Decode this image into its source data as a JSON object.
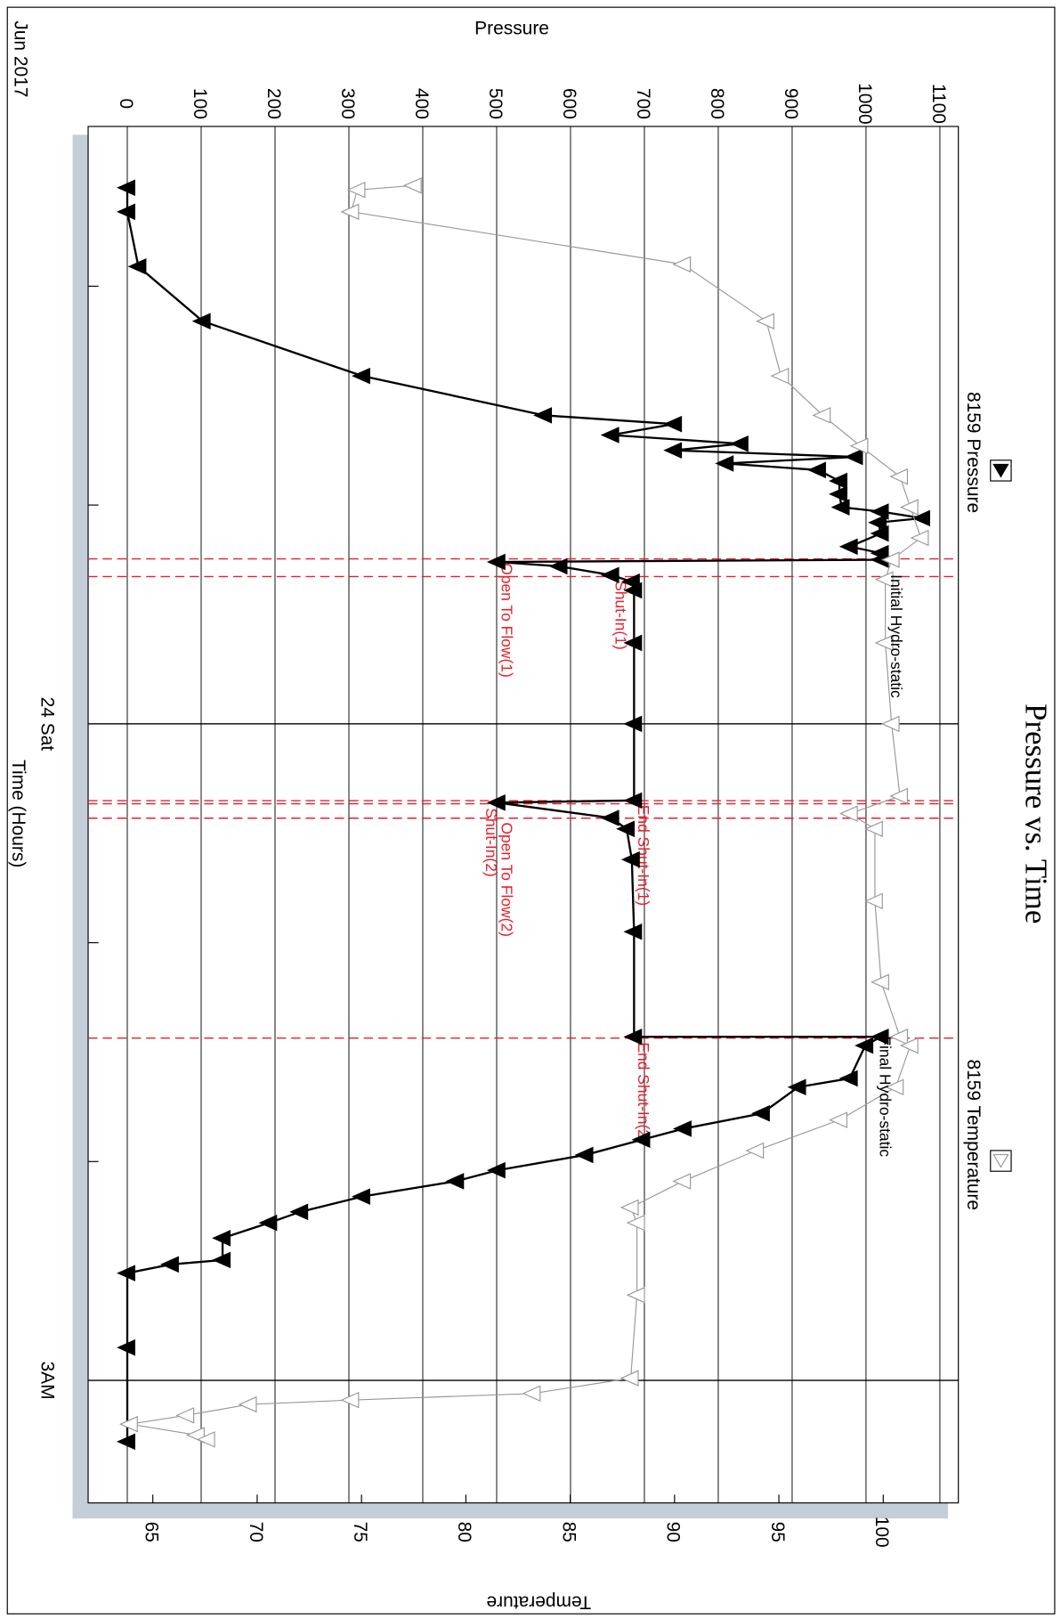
{
  "chart_data": {
    "type": "line",
    "title": "Pressure vs. Time",
    "x_label": "Time (Hours)",
    "x_date_label": "Jun 2017",
    "y_label": "Pressure",
    "y2_label": "Temperature",
    "xlim": [
      -2.73,
      3.56
    ],
    "xticks": [
      {
        "value": 0,
        "label": "24 Sat"
      },
      {
        "value": 3,
        "label": "3AM"
      }
    ],
    "xminor_ticks": [
      -2,
      -1,
      1,
      2
    ],
    "ylim": [
      -53,
      1125
    ],
    "yticks": [
      0,
      100,
      200,
      300,
      400,
      500,
      600,
      700,
      800,
      900,
      1000,
      1100
    ],
    "y2lim": [
      61.9,
      103.6
    ],
    "y2ticks": [
      65,
      70,
      75,
      80,
      85,
      90,
      95,
      100
    ],
    "grid": true,
    "series": [
      {
        "name": "8159 Pressure",
        "color": "#000000",
        "marker": "filled-triangle",
        "x": [
          -2.45,
          -2.34,
          -2.09,
          -1.84,
          -1.59,
          -1.41,
          -1.37,
          -1.32,
          -1.28,
          -1.25,
          -1.22,
          -1.19,
          -1.16,
          -1.11,
          -1.05,
          -0.99,
          -0.97,
          -0.94,
          -0.92,
          -0.87,
          -0.81,
          -0.78,
          -0.75,
          -0.74,
          -0.72,
          -0.68,
          -0.65,
          -0.61,
          -0.37,
          0.0,
          0.35,
          0.36,
          0.43,
          0.48,
          0.62,
          0.95,
          1.43,
          1.43,
          1.47,
          1.62,
          1.66,
          1.78,
          1.85,
          1.9,
          1.97,
          2.04,
          2.09,
          2.16,
          2.23,
          2.28,
          2.35,
          2.45,
          2.47,
          2.51,
          2.85,
          3.28
        ],
        "values": [
          0,
          0,
          15,
          102,
          318,
          564,
          740,
          655,
          830,
          740,
          985,
          810,
          935,
          964,
          964,
          967,
          1020,
          1076,
          1017,
          1020,
          978,
          1020,
          1020,
          501,
          585,
          655,
          683,
          686,
          686,
          686,
          686,
          501,
          655,
          676,
          683,
          686,
          686,
          1020,
          999,
          978,
          908,
          859,
          753,
          697,
          620,
          501,
          445,
          318,
          234,
          192,
          129,
          129,
          59,
          0,
          0,
          0
        ]
      },
      {
        "name": "8159 Temperature",
        "color": "#999999",
        "marker": "hollow-triangle",
        "axis": "y2",
        "x": [
          -2.46,
          -2.44,
          -2.34,
          -2.1,
          -1.84,
          -1.59,
          -1.41,
          -1.27,
          -1.13,
          -0.99,
          -0.85,
          -0.75,
          -0.66,
          -0.37,
          0.0,
          0.33,
          0.41,
          0.48,
          0.81,
          1.18,
          1.43,
          1.47,
          1.66,
          1.81,
          1.95,
          2.09,
          2.21,
          2.28,
          2.61,
          2.99,
          3.06,
          3.09,
          3.11,
          3.16,
          3.2,
          3.25,
          3.27
        ],
        "values": [
          77.5,
          74.8,
          74.5,
          90.4,
          94.4,
          95.1,
          97.1,
          98.9,
          100.8,
          101.3,
          101.8,
          100.4,
          100.1,
          100.1,
          100.4,
          100.8,
          98.4,
          99.6,
          99.6,
          99.9,
          100.8,
          101.3,
          100.6,
          97.9,
          93.9,
          90.4,
          87.9,
          88.2,
          88.2,
          87.9,
          83.2,
          74.5,
          69.6,
          66.6,
          63.9,
          67.1,
          67.6
        ]
      }
    ],
    "events": [
      {
        "x": -0.754,
        "text": "Open To Flow(1)",
        "y": 501
      },
      {
        "x": -0.673,
        "text": "Shut-In(1)",
        "y": 655
      },
      {
        "x": 0.351,
        "text": "End Shut-In(1)",
        "y": 686
      },
      {
        "x": 0.365,
        "text": "Shut-In(2)",
        "y": 480
      },
      {
        "x": 0.431,
        "text": "Open To Flow(2)",
        "y": 501
      },
      {
        "x": 1.436,
        "text": "End Shut-In(2)",
        "y": 686
      }
    ],
    "annotations": [
      {
        "x": -0.673,
        "text": "Initial Hydro-static",
        "y": 1045
      },
      {
        "x": 1.436,
        "text": "Final Hydro-static",
        "y": 1030
      }
    ]
  }
}
